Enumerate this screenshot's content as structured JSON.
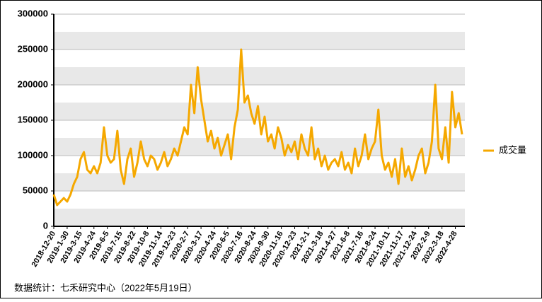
{
  "chart_data": {
    "type": "line",
    "categories": [
      "2018-12-20",
      null,
      null,
      null,
      "2019-1-30",
      null,
      null,
      null,
      "2019-3-15",
      null,
      null,
      null,
      "2019-4-24",
      null,
      null,
      null,
      "2019-6-5",
      null,
      null,
      null,
      "2019-7-15",
      null,
      null,
      null,
      "2019-8-22",
      null,
      null,
      null,
      "2019-10-8",
      null,
      null,
      null,
      "2019-11-14",
      null,
      null,
      null,
      "2019-12-23",
      null,
      null,
      null,
      "2020-2-7",
      null,
      null,
      null,
      "2020-3-17",
      null,
      null,
      null,
      "2020-4-24",
      null,
      null,
      null,
      "2020-6-5",
      null,
      null,
      null,
      "2020-7-16",
      null,
      null,
      null,
      "2020-8-24",
      null,
      null,
      null,
      "2020-9-30",
      null,
      null,
      null,
      "2020-11-16",
      null,
      null,
      null,
      "2020-12-23",
      null,
      null,
      null,
      "2021-2-1",
      null,
      null,
      null,
      "2021-3-18",
      null,
      null,
      null,
      "2021-4-27",
      null,
      null,
      null,
      "2021-6-8",
      null,
      null,
      null,
      "2021-7-16",
      null,
      null,
      null,
      "2021-8-24",
      null,
      null,
      null,
      "2021-10-11",
      null,
      null,
      null,
      "2021-11-17",
      null,
      null,
      null,
      "2021-12-24",
      null,
      null,
      null,
      "2022-2-9",
      null,
      null,
      null,
      "2022-3-18",
      null,
      null,
      null,
      "2022-4-28",
      null,
      null
    ],
    "series": [
      {
        "name": "成交量",
        "color": "#f5a800",
        "values": [
          45000,
          30000,
          35000,
          40000,
          35000,
          45000,
          60000,
          70000,
          95000,
          105000,
          80000,
          75000,
          85000,
          75000,
          90000,
          140000,
          100000,
          90000,
          95000,
          135000,
          80000,
          60000,
          95000,
          110000,
          70000,
          90000,
          120000,
          95000,
          85000,
          100000,
          95000,
          80000,
          90000,
          105000,
          85000,
          95000,
          110000,
          100000,
          120000,
          140000,
          130000,
          200000,
          160000,
          225000,
          180000,
          150000,
          120000,
          135000,
          110000,
          125000,
          100000,
          115000,
          130000,
          95000,
          140000,
          165000,
          250000,
          175000,
          185000,
          160000,
          145000,
          170000,
          130000,
          155000,
          120000,
          130000,
          110000,
          140000,
          125000,
          100000,
          115000,
          105000,
          120000,
          95000,
          130000,
          110000,
          100000,
          140000,
          95000,
          110000,
          85000,
          100000,
          80000,
          90000,
          95000,
          85000,
          105000,
          80000,
          90000,
          75000,
          110000,
          85000,
          100000,
          130000,
          95000,
          110000,
          120000,
          165000,
          100000,
          80000,
          90000,
          70000,
          95000,
          60000,
          110000,
          70000,
          85000,
          65000,
          80000,
          100000,
          110000,
          75000,
          90000,
          120000,
          200000,
          110000,
          95000,
          140000,
          90000,
          190000,
          140000,
          160000,
          130000
        ]
      }
    ],
    "ylim": [
      0,
      300000
    ],
    "yticks": [
      0,
      50000,
      100000,
      150000,
      200000,
      250000,
      300000
    ],
    "grid": true,
    "source": "数据统计：七禾研究中心（2022年5月19日）"
  }
}
